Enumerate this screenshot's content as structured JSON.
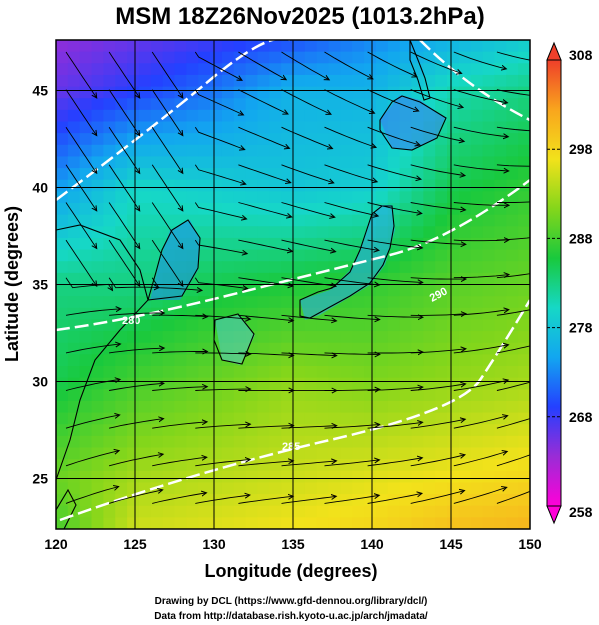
{
  "chart_data": {
    "type": "heatmap",
    "title": "MSM 18Z26Nov2025 (1013.2hPa)",
    "xlabel": "Longitude (degrees)",
    "ylabel": "Latitude  (degrees)",
    "xlim": [
      120,
      150
    ],
    "ylim": [
      22.4,
      47.6
    ],
    "x_ticks": [
      120,
      125,
      130,
      135,
      140,
      145,
      150
    ],
    "y_ticks": [
      25,
      30,
      35,
      40,
      45
    ],
    "grid": true,
    "colorbar": {
      "min": 258,
      "max": 308,
      "ticks": [
        258,
        268,
        278,
        288,
        298,
        308
      ],
      "colormap": [
        "#ff00d8",
        "#9a2cd6",
        "#2440ff",
        "#12a6f0",
        "#16d8c6",
        "#19c93d",
        "#84d61b",
        "#f2e21b",
        "#f9a51d",
        "#ef3f2a"
      ]
    },
    "field": {
      "variable": "temperature_K",
      "x": [
        120,
        125,
        130,
        135,
        140,
        145,
        150
      ],
      "y": [
        47.6,
        45,
        40,
        35,
        30,
        25,
        22.4
      ],
      "values": [
        [
          264,
          266,
          268,
          270,
          273,
          276,
          279
        ],
        [
          266,
          269,
          272,
          276,
          276,
          281,
          283
        ],
        [
          274,
          280,
          279,
          278,
          279,
          285,
          287
        ],
        [
          283,
          283,
          285,
          286,
          287,
          289,
          290
        ],
        [
          285,
          288,
          290,
          292,
          291,
          292,
          293
        ],
        [
          290,
          293,
          294,
          295,
          296,
          297,
          298
        ],
        [
          288,
          295,
          296,
          297,
          298,
          300,
          301
        ]
      ]
    },
    "contours_labels": [
      "280",
      "290",
      "285"
    ],
    "streamlines": true
  },
  "credits": {
    "line1": "Drawing by DCL (https://www.gfd-dennou.org/library/dcl/)",
    "line2": "Data from http://database.rish.kyoto-u.ac.jp/arch/jmadata/"
  },
  "colors": {
    "contour": "#ffffff",
    "coast": "#000000",
    "grid": "#000000",
    "stream": "#000000"
  }
}
